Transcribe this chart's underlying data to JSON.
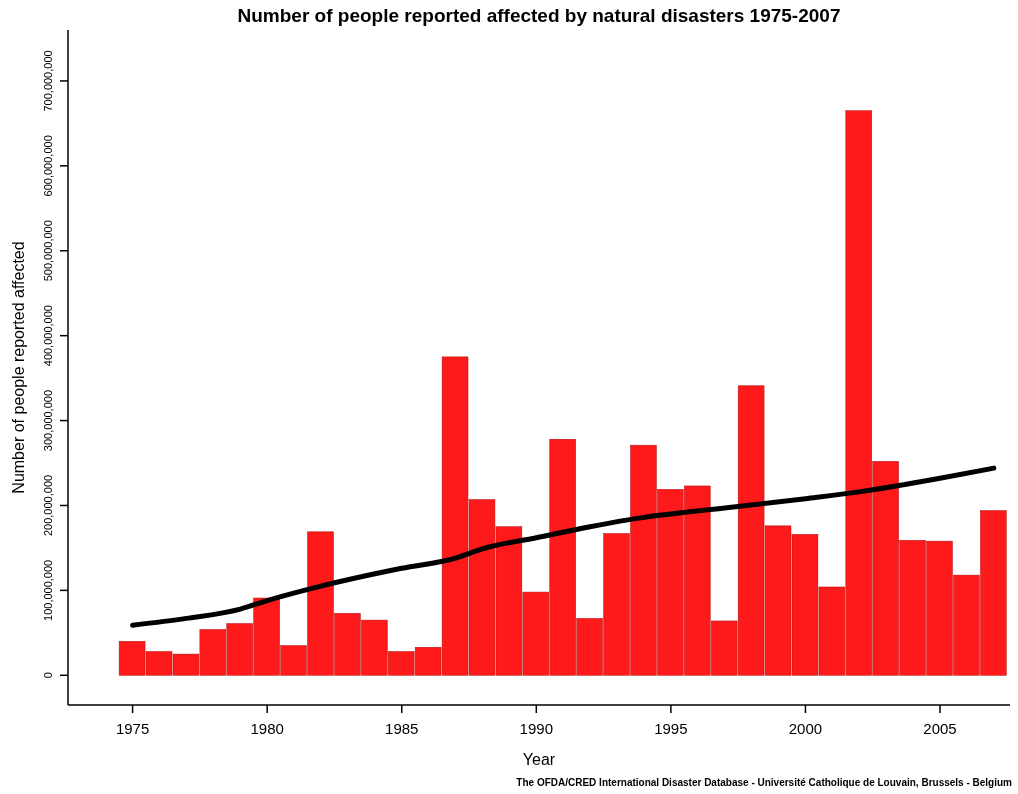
{
  "chart_data": {
    "type": "bar",
    "title": "Number of people reported affected by natural disasters 1975-2007",
    "xlabel": "Year",
    "ylabel": "Number of people reported affected",
    "x": [
      1975,
      1976,
      1977,
      1978,
      1979,
      1980,
      1981,
      1982,
      1983,
      1984,
      1985,
      1986,
      1987,
      1988,
      1989,
      1990,
      1991,
      1992,
      1993,
      1994,
      1995,
      1996,
      1997,
      1998,
      1999,
      2000,
      2001,
      2002,
      2003,
      2004,
      2005,
      2006,
      2007
    ],
    "series": [
      {
        "color": "#fe1a1a",
        "values": [
          40000000,
          28000000,
          25000000,
          54000000,
          61000000,
          91000000,
          35000000,
          169000000,
          73000000,
          65000000,
          28000000,
          33000000,
          375000000,
          207000000,
          175000000,
          98000000,
          278000000,
          67000000,
          167000000,
          271000000,
          219000000,
          223000000,
          64000000,
          341000000,
          176000000,
          166000000,
          104000000,
          665000000,
          252000000,
          159000000,
          158000000,
          118000000,
          194000000
        ]
      },
      {
        "type": "line",
        "color": "#000000",
        "x": [
          1975,
          1977,
          1979,
          1980,
          1982,
          1985,
          1987,
          1988,
          1990,
          1992,
          1994,
          1995,
          1997,
          2000,
          2002,
          2005,
          2007
        ],
        "values": [
          59000000,
          67000000,
          78000000,
          88000000,
          105000000,
          126000000,
          138000000,
          149000000,
          162000000,
          175000000,
          186000000,
          190000000,
          197000000,
          208000000,
          216000000,
          232000000,
          244000000
        ]
      }
    ],
    "xlim": [
      1972.6,
      2007.6
    ],
    "xticks": [
      1975,
      1980,
      1985,
      1990,
      1995,
      2000,
      2005
    ],
    "ylim": [
      -35000000,
      760000000
    ],
    "yticks": [
      {
        "value": 0,
        "label": "0"
      },
      {
        "value": 100000000,
        "label": "100,000,000"
      },
      {
        "value": 200000000,
        "label": "200,000,000"
      },
      {
        "value": 300000000,
        "label": "300,000,000"
      },
      {
        "value": 400000000,
        "label": "400,000,000"
      },
      {
        "value": 500000000,
        "label": "500,000,000"
      },
      {
        "value": 600000000,
        "label": "600,000,000"
      },
      {
        "value": 700000000,
        "label": "700,000,000"
      }
    ],
    "grid": false,
    "marker": "none",
    "line_style": "solid",
    "annotations": [
      "The OFDA/CRED International Disaster Database - Université Catholique de Louvain, Brussels - Belgium"
    ]
  }
}
